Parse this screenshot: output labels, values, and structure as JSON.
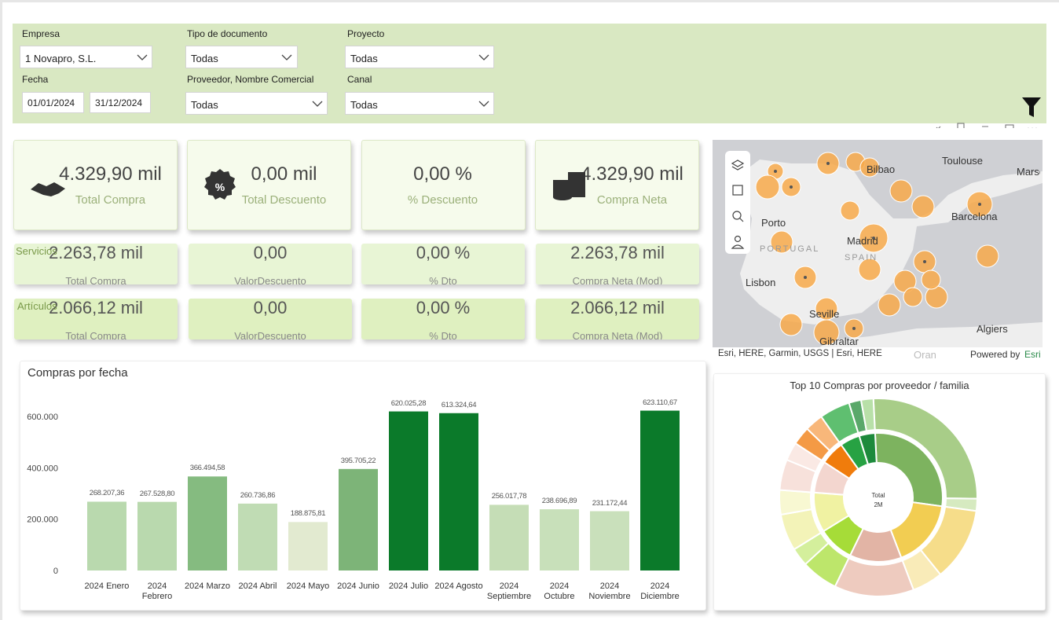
{
  "filters": {
    "fields": [
      {
        "label": "Empresa",
        "value": "1 Novapro, S.L."
      },
      {
        "label": "Tipo de documento",
        "value": "Todas"
      },
      {
        "label": "Proyecto",
        "value": "Todas"
      },
      {
        "label": "Proveedor, Nombre Comercial",
        "value": "Todas"
      },
      {
        "label": "Canal",
        "value": "Todas"
      }
    ],
    "date": {
      "label": "Fecha",
      "from": "01/01/2024",
      "to": "31/12/2024"
    }
  },
  "kpis": [
    {
      "value": "4.329,90 mil",
      "label": "Total Compra"
    },
    {
      "value": "0,00 mil",
      "label": "Total Descuento"
    },
    {
      "value": "0,00 %",
      "label": "% Descuento"
    },
    {
      "value": "4.329,90 mil",
      "label": "Compra Neta"
    }
  ],
  "rows": [
    {
      "name": "Servicios",
      "cells": [
        {
          "value": "2.263,78 mil",
          "label": "Total Compra"
        },
        {
          "value": "0,00",
          "label": "ValorDescuento"
        },
        {
          "value": "0,00 %",
          "label": "% Dto"
        },
        {
          "value": "2.263,78 mil",
          "label": "Compra Neta (Mod)"
        }
      ]
    },
    {
      "name": "Artículos",
      "cells": [
        {
          "value": "2.066,12 mil",
          "label": "Total Compra"
        },
        {
          "value": "0,00",
          "label": "ValorDescuento"
        },
        {
          "value": "0,00 %",
          "label": "% Dto"
        },
        {
          "value": "2.066,12 mil",
          "label": "Compra Neta (Mod)"
        }
      ]
    }
  ],
  "map": {
    "labels": [
      "Toulouse",
      "Marseille",
      "Bilbao",
      "Porto",
      "Barcelona",
      "Madrid",
      "PORTUGAL",
      "SPAIN",
      "Lisbon",
      "Seville",
      "Algiers",
      "Gibraltar",
      "Oran"
    ],
    "attribution": "Esri, HERE, Garmin, USGS | Esri, HERE",
    "powered": "Powered by",
    "esri": "Esri"
  },
  "chart_data": {
    "type": "bar",
    "title": "Compras por fecha",
    "categories": [
      "2024 Enero",
      "2024 Febrero",
      "2024 Marzo",
      "2024 Abril",
      "2024 Mayo",
      "2024 Junio",
      "2024 Julio",
      "2024 Agosto",
      "2024 Septiembre",
      "2024 Octubre",
      "2024 Noviembre",
      "2024 Diciembre"
    ],
    "values": [
      268207.36,
      267528.8,
      366494.58,
      260736.86,
      188875.81,
      395705.22,
      620025.28,
      613324.64,
      256017.78,
      238696.89,
      231172.44,
      623110.67
    ],
    "value_labels": [
      "268.207,36",
      "267.528,80",
      "366.494,58",
      "260.736,86",
      "188.875,81",
      "395.705,22",
      "620.025,28",
      "613.324,64",
      "256.017,78",
      "238.696,89",
      "231.172,44",
      "623.110,67"
    ],
    "colors": [
      "#b9d9ae",
      "#b9d9ae",
      "#85bb80",
      "#c0dcb4",
      "#e2ead0",
      "#7db478",
      "#0b7a2a",
      "#0b7a2a",
      "#c5ddb6",
      "#c8e0ba",
      "#c9e0bb",
      "#0b7a2a"
    ],
    "ylim": [
      0,
      680000
    ],
    "yticks": [
      0,
      {
        "value": 200000,
        "label": "200.000"
      },
      {
        "value": 400000,
        "label": "400.000"
      },
      {
        "value": 600000,
        "label": "600.000"
      }
    ]
  },
  "sunburst": {
    "title": "Top 10 Compras por proveedor / familia",
    "center": [
      "Total",
      "2M"
    ],
    "segments": [
      {
        "value": 28,
        "color": "#7db35f",
        "children": [
          {
            "value": 26,
            "color": "#a8cd88"
          },
          {
            "value": 2,
            "color": "#d6eac0"
          }
        ]
      },
      {
        "value": 17,
        "color": "#f2cd52",
        "children": [
          {
            "value": 12,
            "color": "#f6dd8a"
          },
          {
            "value": 5,
            "color": "#f9ebb8"
          }
        ]
      },
      {
        "value": 13,
        "color": "#e2b4a5",
        "children": [
          {
            "value": 13,
            "color": "#eecbbf"
          }
        ]
      },
      {
        "value": 9,
        "color": "#a6dc38",
        "children": [
          {
            "value": 6,
            "color": "#bde66b"
          },
          {
            "value": 3,
            "color": "#d4ef9c"
          }
        ]
      },
      {
        "value": 10,
        "color": "#f0f2a2",
        "children": [
          {
            "value": 6,
            "color": "#f3f3b8"
          },
          {
            "value": 4,
            "color": "#f8f8d2"
          }
        ]
      },
      {
        "value": 8,
        "color": "#f3d6cf",
        "children": [
          {
            "value": 5,
            "color": "#f7e1db"
          },
          {
            "value": 3,
            "color": "#fae9e4"
          }
        ]
      },
      {
        "value": 6,
        "color": "#f07c0c",
        "children": [
          {
            "value": 3,
            "color": "#f49a45"
          },
          {
            "value": 3,
            "color": "#f8b77a"
          }
        ]
      },
      {
        "value": 5,
        "color": "#27a243",
        "children": [
          {
            "value": 5,
            "color": "#5fbf70"
          }
        ]
      },
      {
        "value": 4,
        "color": "#1d8a3c",
        "children": [
          {
            "value": 2,
            "color": "#5aa86a"
          },
          {
            "value": 2,
            "color": "#b8e0a8"
          }
        ]
      }
    ]
  }
}
